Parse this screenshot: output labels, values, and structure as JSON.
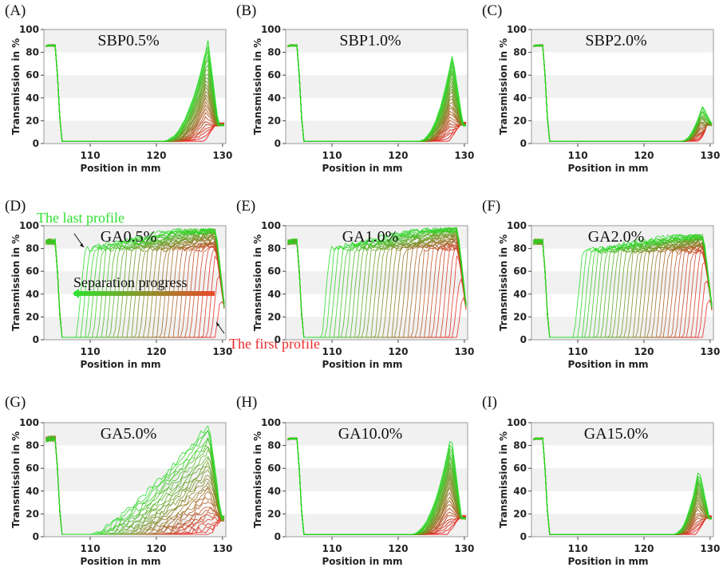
{
  "figure": {
    "description_free": true
  },
  "chart_data": [
    {
      "type": "line",
      "letter": "(A)",
      "title": "SBP0.5%",
      "xlabel": "Position in mm",
      "ylabel": "Transmission in %",
      "xlim": [
        103,
        130.5
      ],
      "ylim": [
        0,
        100
      ],
      "xticks": [
        110,
        120,
        130
      ],
      "yticks": [
        0,
        20,
        40,
        60,
        80,
        100
      ],
      "mode": "peak",
      "wall": 105.2,
      "peak_position": 127.8,
      "peak_max": 88,
      "peak_width": 3.2,
      "series_count": 26
    },
    {
      "type": "line",
      "letter": "(B)",
      "title": "SBP1.0%",
      "xlabel": "Position in mm",
      "ylabel": "Transmission in %",
      "xlim": [
        103,
        130.5
      ],
      "ylim": [
        0,
        100
      ],
      "xticks": [
        110,
        120,
        130
      ],
      "yticks": [
        0,
        20,
        40,
        60,
        80,
        100
      ],
      "mode": "peak",
      "wall": 105.2,
      "peak_position": 128.2,
      "peak_max": 76,
      "peak_width": 2.4,
      "series_count": 26
    },
    {
      "type": "line",
      "letter": "(C)",
      "title": "SBP2.0%",
      "xlabel": "Position in mm",
      "ylabel": "Transmission in %",
      "xlim": [
        103,
        130.5
      ],
      "ylim": [
        0,
        100
      ],
      "xticks": [
        110,
        120,
        130
      ],
      "yticks": [
        0,
        20,
        40,
        60,
        80,
        100
      ],
      "mode": "peak",
      "wall": 105.2,
      "peak_position": 128.8,
      "peak_max": 31,
      "peak_width": 1.5,
      "series_count": 20
    },
    {
      "type": "line",
      "letter": "(D)",
      "title": "GA0.5%",
      "xlabel": "Position in mm",
      "ylabel": "Transmission in %",
      "xlim": [
        103,
        130.5
      ],
      "ylim": [
        0,
        100
      ],
      "xticks": [
        110,
        120,
        130
      ],
      "yticks": [
        0,
        20,
        40,
        60,
        80,
        100
      ],
      "mode": "front",
      "wall": 105.2,
      "front_start": 108,
      "front_end": 129,
      "plateau_max": 95,
      "series_count": 34,
      "annotations": {
        "last_profile": "The last profile",
        "first_profile": "The first profile",
        "progress": "Separation progress"
      }
    },
    {
      "type": "line",
      "letter": "(E)",
      "title": "GA1.0%",
      "xlabel": "Position in mm",
      "ylabel": "Transmission in %",
      "xlim": [
        103,
        130.5
      ],
      "ylim": [
        0,
        100
      ],
      "xticks": [
        110,
        120,
        130
      ],
      "yticks": [
        0,
        20,
        40,
        60,
        80,
        100
      ],
      "mode": "front",
      "wall": 105.2,
      "front_start": 108.5,
      "front_end": 129,
      "plateau_max": 96,
      "series_count": 34
    },
    {
      "type": "line",
      "letter": "(F)",
      "title": "GA2.0%",
      "xlabel": "Position in mm",
      "ylabel": "Transmission in %",
      "xlim": [
        103,
        130.5
      ],
      "ylim": [
        0,
        100
      ],
      "xticks": [
        110,
        120,
        130
      ],
      "yticks": [
        0,
        20,
        40,
        60,
        80,
        100
      ],
      "mode": "front",
      "wall": 105.2,
      "front_start": 109.5,
      "front_end": 129,
      "plateau_max": 90,
      "series_count": 34
    },
    {
      "type": "line",
      "letter": "(G)",
      "title": "GA5.0%",
      "xlabel": "Position in mm",
      "ylabel": "Transmission in %",
      "xlim": [
        103,
        130.5
      ],
      "ylim": [
        0,
        100
      ],
      "xticks": [
        110,
        120,
        130
      ],
      "yticks": [
        0,
        20,
        40,
        60,
        80,
        100
      ],
      "mode": "ramp",
      "wall": 105.2,
      "ramp_start": 110,
      "peak_position": 128,
      "peak_max": 97,
      "series_count": 30
    },
    {
      "type": "line",
      "letter": "(H)",
      "title": "GA10.0%",
      "xlabel": "Position in mm",
      "ylabel": "Transmission in %",
      "xlim": [
        103,
        130.5
      ],
      "ylim": [
        0,
        100
      ],
      "xticks": [
        110,
        120,
        130
      ],
      "yticks": [
        0,
        20,
        40,
        60,
        80,
        100
      ],
      "mode": "peak",
      "wall": 105.2,
      "peak_position": 128,
      "peak_max": 87,
      "peak_width": 2.8,
      "series_count": 26
    },
    {
      "type": "line",
      "letter": "(I)",
      "title": "GA15.0%",
      "xlabel": "Position in mm",
      "ylabel": "Transmission in %",
      "xlim": [
        103,
        130.5
      ],
      "ylim": [
        0,
        100
      ],
      "xticks": [
        110,
        120,
        130
      ],
      "yticks": [
        0,
        20,
        40,
        60,
        80,
        100
      ],
      "mode": "peak",
      "wall": 105.2,
      "peak_position": 128.3,
      "peak_max": 58,
      "peak_width": 1.8,
      "series_count": 22
    }
  ],
  "colors": {
    "first_profile": "#ee2020",
    "last_profile": "#22dd22",
    "band_light": "#f1f1f1",
    "frame": "#9a9a9a"
  }
}
